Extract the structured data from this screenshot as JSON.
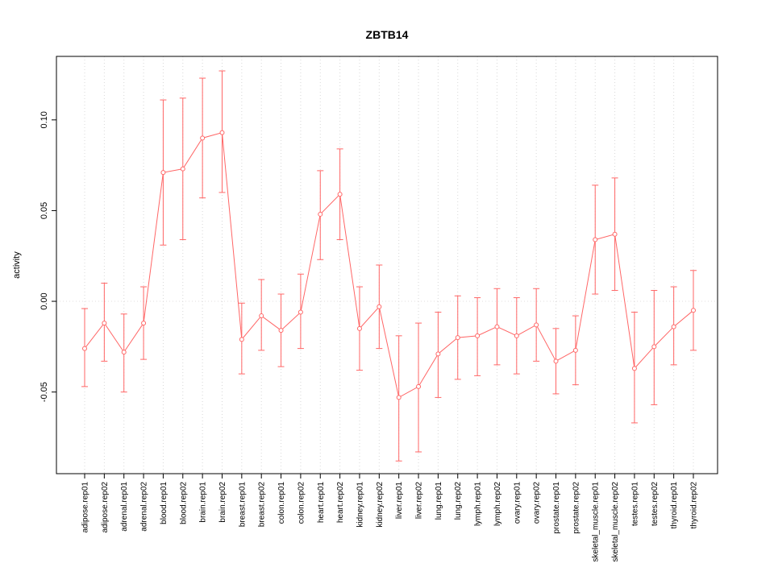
{
  "chart_data": {
    "type": "line",
    "title": "ZBTB14",
    "xlabel": "",
    "ylabel": "activity",
    "ylim": [
      -0.095,
      0.135
    ],
    "yticks": [
      -0.05,
      0.0,
      0.05,
      0.1
    ],
    "ytick_labels": [
      "-0.05",
      "0.00",
      "0.05",
      "0.10"
    ],
    "grid": true,
    "legend": "none",
    "series_color": "#ff6666",
    "grid_color": "#d8d8d8",
    "zero_line_color": "#e0dcdc",
    "axis_color": "#000000",
    "point_style": "open-circle-with-error-bars",
    "categories": [
      "adipose.rep01",
      "adipose.rep02",
      "adrenal.rep01",
      "adrenal.rep02",
      "blood.rep01",
      "blood.rep02",
      "brain.rep01",
      "brain.rep02",
      "breast.rep01",
      "breast.rep02",
      "colon.rep01",
      "colon.rep02",
      "heart.rep01",
      "heart.rep02",
      "kidney.rep01",
      "kidney.rep02",
      "liver.rep01",
      "liver.rep02",
      "lung.rep01",
      "lung.rep02",
      "lymph.rep01",
      "lymph.rep02",
      "ovary.rep01",
      "ovary.rep02",
      "prostate.rep01",
      "prostate.rep02",
      "skeletal_muscle.rep01",
      "skeletal_muscle.rep02",
      "testes.rep01",
      "testes.rep02",
      "thyroid.rep01",
      "thyroid.rep02"
    ],
    "values": [
      -0.026,
      -0.012,
      -0.028,
      -0.012,
      0.071,
      0.073,
      0.09,
      0.093,
      -0.021,
      -0.008,
      -0.016,
      -0.006,
      0.048,
      0.059,
      -0.015,
      -0.003,
      -0.053,
      -0.047,
      -0.029,
      -0.02,
      -0.019,
      -0.014,
      -0.019,
      -0.013,
      -0.033,
      -0.027,
      0.034,
      0.037,
      -0.037,
      -0.025,
      -0.014,
      -0.005
    ],
    "lower": [
      -0.047,
      -0.033,
      -0.05,
      -0.032,
      0.031,
      0.034,
      0.057,
      0.06,
      -0.04,
      -0.027,
      -0.036,
      -0.026,
      0.023,
      0.034,
      -0.038,
      -0.026,
      -0.088,
      -0.083,
      -0.053,
      -0.043,
      -0.041,
      -0.035,
      -0.04,
      -0.033,
      -0.051,
      -0.046,
      0.004,
      0.006,
      -0.067,
      -0.057,
      -0.035,
      -0.027
    ],
    "upper": [
      -0.004,
      0.01,
      -0.007,
      0.008,
      0.111,
      0.112,
      0.123,
      0.127,
      -0.001,
      0.012,
      0.004,
      0.015,
      0.072,
      0.084,
      0.008,
      0.02,
      -0.019,
      -0.012,
      -0.006,
      0.003,
      0.002,
      0.007,
      0.002,
      0.007,
      -0.015,
      -0.008,
      0.064,
      0.068,
      -0.006,
      0.006,
      0.008,
      0.017
    ]
  }
}
